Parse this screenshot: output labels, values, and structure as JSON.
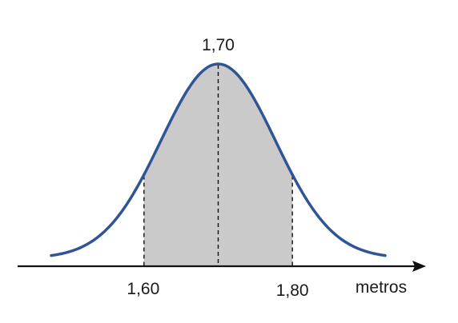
{
  "chart_data": {
    "type": "area",
    "distribution": "normal",
    "mean": 1.7,
    "shaded_interval": [
      1.6,
      1.8
    ],
    "x_domain": [
      1.475,
      1.925
    ],
    "title": "",
    "xlabel": "metros",
    "ylabel": "",
    "grid": false,
    "legend": "none",
    "annotations": {
      "mean_label": "1,70",
      "lower_label": "1,60",
      "upper_label": "1,80"
    },
    "colors": {
      "curve": "#2f5597",
      "shade": "#cacaca",
      "axis": "#111111",
      "dashed": "#111111"
    }
  }
}
